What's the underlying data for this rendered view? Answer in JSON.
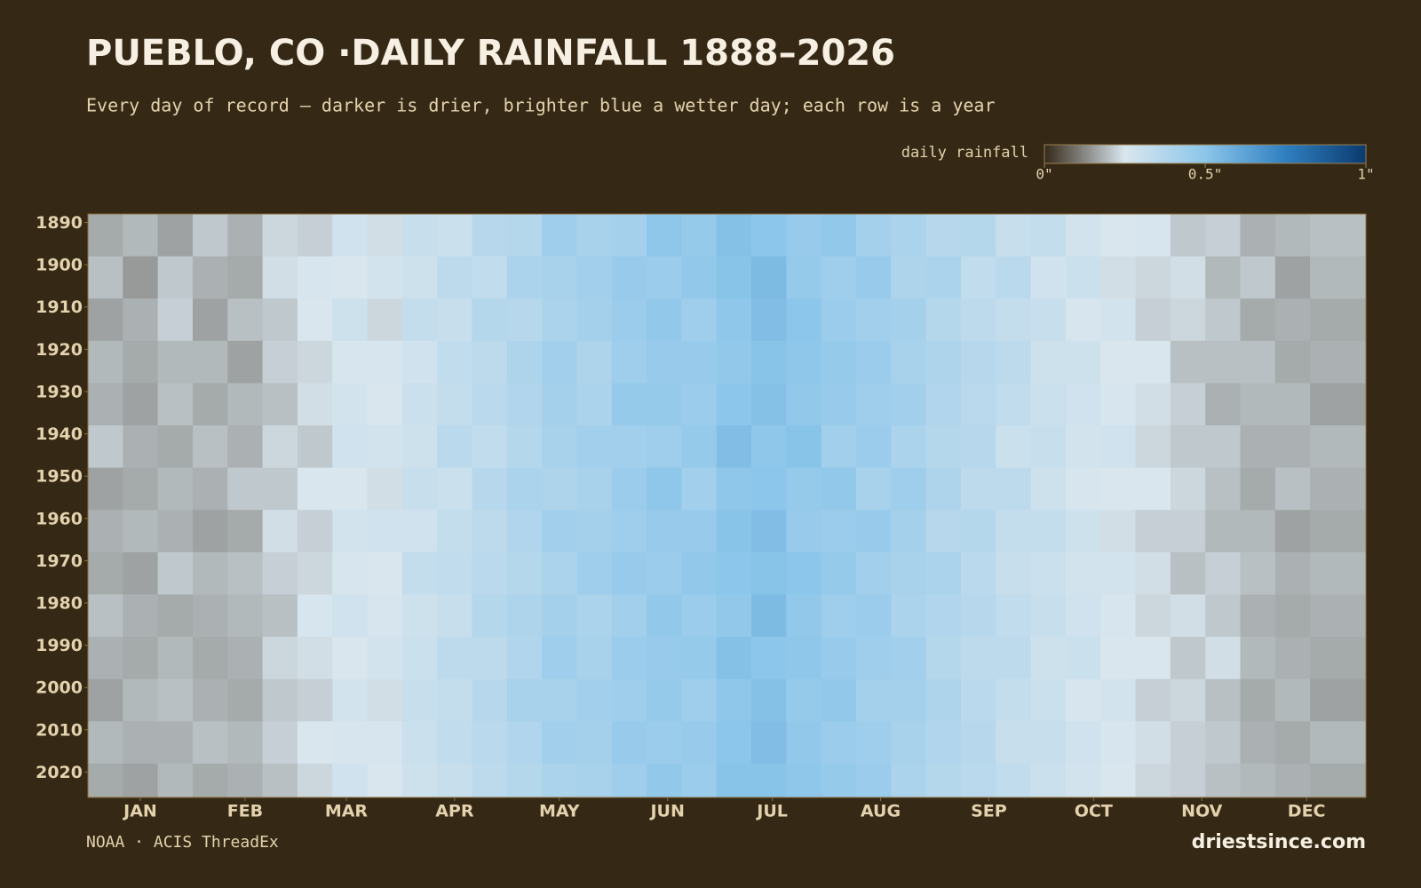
{
  "chart_data": {
    "type": "heatmap",
    "title": "PUEBLO, CO ·DAILY RAINFALL 1888–2026",
    "subtitle": "Every day of record — darker is drier, brighter blue a wetter day; each row is a year",
    "legend_title": "daily rainfall",
    "legend_ticks": [
      {
        "value": 0,
        "label": "0\""
      },
      {
        "value": 0.5,
        "label": "0.5\""
      },
      {
        "value": 1,
        "label": "1\""
      }
    ],
    "colors": [
      "#35291a",
      "#d9e6ee",
      "#8cc6ea",
      "#2f7fc0",
      "#0b3a6e"
    ],
    "source": "NOAA · ACIS ThreadEx",
    "site": "driestsince.com",
    "xlim": [
      1,
      367
    ],
    "xticks": [
      {
        "value": 16,
        "label": "JAN"
      },
      {
        "value": 46,
        "label": "FEB"
      },
      {
        "value": 75,
        "label": "MAR"
      },
      {
        "value": 106,
        "label": "APR"
      },
      {
        "value": 136,
        "label": "MAY"
      },
      {
        "value": 167,
        "label": "JUN"
      },
      {
        "value": 197,
        "label": "JUL"
      },
      {
        "value": 228,
        "label": "AUG"
      },
      {
        "value": 259,
        "label": "SEP"
      },
      {
        "value": 289,
        "label": "OCT"
      },
      {
        "value": 320,
        "label": "NOV"
      },
      {
        "value": 350,
        "label": "DEC"
      }
    ],
    "ylim": [
      1888,
      2026
    ],
    "yticks": [
      1890,
      1900,
      1910,
      1920,
      1930,
      1940,
      1950,
      1960,
      1970,
      1980,
      1990,
      2000,
      2010,
      2020
    ],
    "x": [
      1,
      11,
      21,
      31,
      41,
      51,
      61,
      71,
      81,
      91,
      101,
      111,
      121,
      131,
      141,
      151,
      161,
      171,
      181,
      191,
      201,
      211,
      221,
      231,
      241,
      251,
      261,
      271,
      281,
      291,
      301,
      311,
      321,
      331,
      341,
      351
    ],
    "y": [
      1888,
      1898,
      1908,
      1918,
      1928,
      1938,
      1948,
      1958,
      1968,
      1978,
      1988,
      1998,
      2008,
      2018
    ],
    "values": [
      [
        0.17,
        0.19,
        0.16,
        0.21,
        0.18,
        0.23,
        0.22,
        0.28,
        0.24,
        0.31,
        0.3,
        0.36,
        0.37,
        0.44,
        0.41,
        0.42,
        0.49,
        0.47,
        0.52,
        0.5,
        0.46,
        0.48,
        0.42,
        0.4,
        0.36,
        0.37,
        0.31,
        0.32,
        0.27,
        0.25,
        0.26,
        0.21,
        0.22,
        0.18,
        0.19,
        0.2
      ],
      [
        0.2,
        0.15,
        0.21,
        0.18,
        0.17,
        0.24,
        0.26,
        0.25,
        0.27,
        0.29,
        0.34,
        0.33,
        0.4,
        0.41,
        0.43,
        0.46,
        0.45,
        0.48,
        0.51,
        0.54,
        0.47,
        0.44,
        0.46,
        0.39,
        0.4,
        0.33,
        0.35,
        0.28,
        0.3,
        0.24,
        0.23,
        0.24,
        0.19,
        0.21,
        0.16,
        0.19
      ],
      [
        0.16,
        0.18,
        0.22,
        0.16,
        0.2,
        0.21,
        0.25,
        0.29,
        0.23,
        0.32,
        0.31,
        0.37,
        0.36,
        0.4,
        0.42,
        0.45,
        0.48,
        0.44,
        0.49,
        0.53,
        0.5,
        0.45,
        0.43,
        0.42,
        0.37,
        0.34,
        0.32,
        0.31,
        0.26,
        0.27,
        0.22,
        0.23,
        0.21,
        0.17,
        0.18,
        0.17
      ],
      [
        0.19,
        0.17,
        0.19,
        0.19,
        0.16,
        0.22,
        0.23,
        0.26,
        0.26,
        0.28,
        0.33,
        0.34,
        0.39,
        0.43,
        0.39,
        0.44,
        0.46,
        0.46,
        0.48,
        0.51,
        0.49,
        0.47,
        0.45,
        0.41,
        0.39,
        0.36,
        0.34,
        0.29,
        0.29,
        0.25,
        0.25,
        0.2,
        0.2,
        0.2,
        0.17,
        0.18
      ],
      [
        0.18,
        0.16,
        0.2,
        0.17,
        0.19,
        0.2,
        0.24,
        0.27,
        0.25,
        0.3,
        0.32,
        0.35,
        0.38,
        0.42,
        0.4,
        0.47,
        0.47,
        0.45,
        0.5,
        0.52,
        0.48,
        0.46,
        0.44,
        0.43,
        0.38,
        0.35,
        0.33,
        0.3,
        0.28,
        0.26,
        0.24,
        0.22,
        0.18,
        0.19,
        0.19,
        0.16
      ],
      [
        0.21,
        0.18,
        0.17,
        0.2,
        0.18,
        0.23,
        0.21,
        0.28,
        0.27,
        0.29,
        0.35,
        0.33,
        0.37,
        0.41,
        0.43,
        0.43,
        0.44,
        0.47,
        0.53,
        0.49,
        0.51,
        0.43,
        0.45,
        0.4,
        0.37,
        0.36,
        0.3,
        0.31,
        0.27,
        0.28,
        0.23,
        0.21,
        0.21,
        0.18,
        0.18,
        0.19
      ],
      [
        0.16,
        0.17,
        0.19,
        0.18,
        0.21,
        0.21,
        0.25,
        0.25,
        0.24,
        0.31,
        0.3,
        0.36,
        0.4,
        0.39,
        0.41,
        0.45,
        0.49,
        0.43,
        0.49,
        0.5,
        0.47,
        0.48,
        0.41,
        0.44,
        0.39,
        0.34,
        0.34,
        0.29,
        0.26,
        0.25,
        0.25,
        0.23,
        0.2,
        0.17,
        0.2,
        0.18
      ],
      [
        0.18,
        0.19,
        0.18,
        0.16,
        0.17,
        0.24,
        0.22,
        0.27,
        0.28,
        0.28,
        0.32,
        0.34,
        0.38,
        0.43,
        0.42,
        0.44,
        0.46,
        0.46,
        0.51,
        0.53,
        0.46,
        0.45,
        0.46,
        0.42,
        0.36,
        0.37,
        0.32,
        0.32,
        0.29,
        0.24,
        0.22,
        0.22,
        0.19,
        0.19,
        0.16,
        0.17
      ],
      [
        0.17,
        0.16,
        0.21,
        0.19,
        0.2,
        0.22,
        0.23,
        0.26,
        0.25,
        0.32,
        0.33,
        0.35,
        0.37,
        0.4,
        0.44,
        0.46,
        0.45,
        0.48,
        0.5,
        0.51,
        0.5,
        0.47,
        0.43,
        0.41,
        0.4,
        0.35,
        0.31,
        0.3,
        0.27,
        0.27,
        0.24,
        0.2,
        0.22,
        0.2,
        0.18,
        0.19
      ],
      [
        0.2,
        0.18,
        0.17,
        0.18,
        0.19,
        0.2,
        0.26,
        0.28,
        0.26,
        0.29,
        0.31,
        0.37,
        0.39,
        0.42,
        0.4,
        0.43,
        0.48,
        0.45,
        0.48,
        0.54,
        0.48,
        0.44,
        0.45,
        0.4,
        0.38,
        0.36,
        0.33,
        0.31,
        0.28,
        0.26,
        0.23,
        0.24,
        0.21,
        0.18,
        0.17,
        0.18
      ],
      [
        0.18,
        0.17,
        0.19,
        0.17,
        0.18,
        0.23,
        0.24,
        0.25,
        0.27,
        0.3,
        0.34,
        0.34,
        0.38,
        0.44,
        0.41,
        0.45,
        0.46,
        0.47,
        0.52,
        0.5,
        0.49,
        0.46,
        0.44,
        0.43,
        0.37,
        0.34,
        0.34,
        0.29,
        0.3,
        0.25,
        0.25,
        0.21,
        0.24,
        0.19,
        0.18,
        0.17
      ],
      [
        0.16,
        0.19,
        0.2,
        0.18,
        0.17,
        0.21,
        0.22,
        0.27,
        0.24,
        0.31,
        0.32,
        0.36,
        0.41,
        0.41,
        0.43,
        0.44,
        0.47,
        0.44,
        0.49,
        0.52,
        0.47,
        0.48,
        0.42,
        0.42,
        0.39,
        0.35,
        0.32,
        0.3,
        0.26,
        0.27,
        0.22,
        0.23,
        0.2,
        0.17,
        0.19,
        0.16
      ],
      [
        0.19,
        0.18,
        0.18,
        0.2,
        0.19,
        0.22,
        0.25,
        0.26,
        0.26,
        0.3,
        0.33,
        0.35,
        0.38,
        0.43,
        0.42,
        0.46,
        0.45,
        0.46,
        0.5,
        0.53,
        0.48,
        0.45,
        0.44,
        0.41,
        0.38,
        0.36,
        0.31,
        0.31,
        0.28,
        0.26,
        0.24,
        0.22,
        0.21,
        0.18,
        0.17,
        0.19
      ],
      [
        0.17,
        0.16,
        0.19,
        0.17,
        0.18,
        0.2,
        0.23,
        0.28,
        0.25,
        0.29,
        0.31,
        0.34,
        0.37,
        0.4,
        0.41,
        0.44,
        0.48,
        0.45,
        0.51,
        0.51,
        0.49,
        0.47,
        0.45,
        0.4,
        0.37,
        0.35,
        0.33,
        0.3,
        0.27,
        0.25,
        0.23,
        0.22,
        0.2,
        0.19,
        0.18,
        0.17
      ]
    ]
  }
}
